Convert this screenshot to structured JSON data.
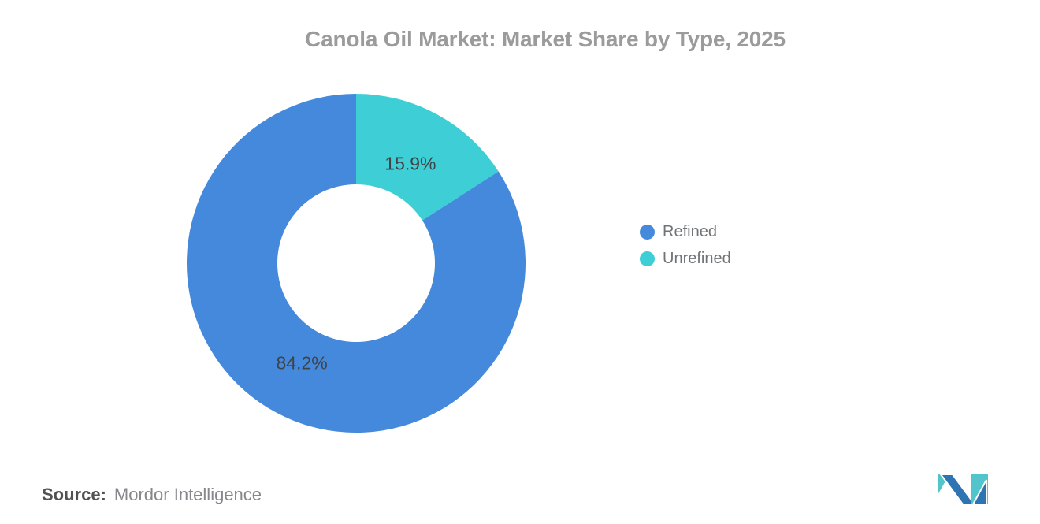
{
  "header": {
    "title": "Canola Oil Market: Market Share by Type, 2025",
    "title_color": "#9b9b9b"
  },
  "chart_data": {
    "type": "pie",
    "subtype": "donut",
    "title": "Canola Oil Market: Market Share by Type, 2025",
    "start_angle": "12 o'clock, unrefined slice clockwise first",
    "inner_radius_ratio": 0.465,
    "legend_position": "right",
    "slice_label_color": "#3f4346",
    "series": [
      {
        "name": "Refined",
        "value": 84.2,
        "label": "84.2%",
        "color": "#4489db"
      },
      {
        "name": "Unrefined",
        "value": 15.9,
        "label": "15.9%",
        "color": "#3eced5"
      }
    ]
  },
  "footer": {
    "source_label": "Source:",
    "source_value": "Mordor Intelligence"
  },
  "logo": {
    "name": "mordor-intelligence-logo",
    "blue": "#2e74b2",
    "teal": "#52c5cc"
  }
}
